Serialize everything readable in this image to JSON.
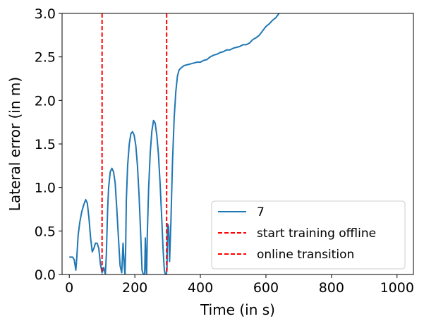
{
  "chart_data": {
    "type": "line",
    "xlabel": "Time (in s)",
    "ylabel": "Lateral error (in m)",
    "xlim": [
      -22,
      1050
    ],
    "ylim": [
      0,
      3.0
    ],
    "xticks": [
      "0",
      "200",
      "400",
      "600",
      "800",
      "1000"
    ],
    "yticks": [
      "0.0",
      "0.5",
      "1.0",
      "1.5",
      "2.0",
      "2.5",
      "3.0"
    ],
    "grid": false,
    "legend_position": "lower-right",
    "colors": {
      "series": "#1f77b4",
      "vline": "#ff0000"
    },
    "series": [
      {
        "name": "7",
        "x": [
          0,
          10,
          15,
          20,
          23,
          27,
          32,
          38,
          44,
          50,
          55,
          60,
          65,
          70,
          75,
          80,
          85,
          90,
          95,
          100,
          105,
          110,
          113,
          117,
          120,
          125,
          130,
          135,
          140,
          145,
          150,
          155,
          160,
          164,
          168,
          170,
          172,
          174,
          178,
          183,
          188,
          193,
          198,
          203,
          208,
          213,
          218,
          222,
          226,
          230,
          232,
          234,
          236,
          238,
          242,
          247,
          252,
          257,
          262,
          267,
          272,
          277,
          282,
          286,
          290,
          293,
          296,
          298,
          300,
          303,
          306,
          310,
          315,
          320,
          325,
          330,
          335,
          340,
          350,
          360,
          370,
          380,
          390,
          400,
          410,
          420,
          430,
          440,
          450,
          460,
          470,
          480,
          490,
          500,
          510,
          520,
          530,
          540,
          550,
          560,
          570,
          580,
          590,
          600,
          610,
          620,
          630,
          640
        ],
        "values": [
          0.2,
          0.2,
          0.17,
          0.05,
          0.2,
          0.45,
          0.6,
          0.72,
          0.8,
          0.86,
          0.82,
          0.65,
          0.42,
          0.26,
          0.3,
          0.36,
          0.36,
          0.3,
          0.12,
          0.02,
          0.08,
          0.0,
          0.22,
          0.75,
          1.0,
          1.18,
          1.22,
          1.18,
          1.05,
          0.75,
          0.42,
          0.1,
          0.02,
          0.36,
          0.08,
          0.0,
          0.3,
          0.85,
          1.25,
          1.5,
          1.62,
          1.64,
          1.6,
          1.48,
          1.25,
          0.9,
          0.45,
          0.05,
          0.0,
          0.0,
          0.42,
          0.1,
          0.0,
          0.45,
          0.98,
          1.4,
          1.65,
          1.77,
          1.74,
          1.6,
          1.38,
          1.05,
          0.65,
          0.3,
          0.05,
          0.0,
          0.0,
          0.05,
          0.58,
          0.55,
          0.15,
          0.6,
          1.3,
          1.8,
          2.1,
          2.28,
          2.35,
          2.37,
          2.4,
          2.41,
          2.42,
          2.43,
          2.44,
          2.44,
          2.46,
          2.47,
          2.5,
          2.52,
          2.53,
          2.55,
          2.56,
          2.58,
          2.58,
          2.6,
          2.61,
          2.62,
          2.64,
          2.64,
          2.66,
          2.7,
          2.72,
          2.75,
          2.8,
          2.85,
          2.88,
          2.92,
          2.95,
          3.0
        ]
      }
    ],
    "vlines": [
      {
        "name": "start training offline",
        "x": 100
      },
      {
        "name": "online transition",
        "x": 297
      }
    ],
    "legend": [
      "7",
      "start training offline",
      "online transition"
    ]
  }
}
